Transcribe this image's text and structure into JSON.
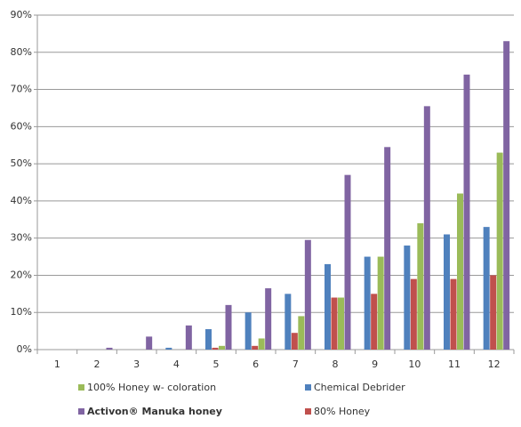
{
  "chart_data": {
    "type": "bar",
    "categories": [
      "1",
      "2",
      "3",
      "4",
      "5",
      "6",
      "7",
      "8",
      "9",
      "10",
      "11",
      "12"
    ],
    "series": [
      {
        "name": "Chemical Debrider",
        "color": "#4f81bd",
        "values": [
          0,
          0,
          0,
          0.5,
          5.5,
          10,
          15,
          23,
          25,
          28,
          31,
          33
        ]
      },
      {
        "name": "80% Honey",
        "color": "#c0504d",
        "values": [
          0,
          0,
          0,
          0,
          0.5,
          1,
          4.5,
          14,
          15,
          19,
          19,
          20
        ]
      },
      {
        "name": "100% Honey w- coloration",
        "color": "#9bbb59",
        "values": [
          0,
          0,
          0,
          0,
          1,
          3,
          9,
          14,
          25,
          34,
          42,
          53
        ]
      },
      {
        "name": "Activon® Manuka honey",
        "color": "#8064a2",
        "values": [
          0,
          0.5,
          3.5,
          6.5,
          12,
          16.5,
          29.5,
          47,
          54.5,
          65.5,
          74,
          83
        ]
      }
    ],
    "ylim": [
      0,
      90
    ],
    "yticks": [
      {
        "value": 0,
        "label": "0%"
      },
      {
        "value": 10,
        "label": "10%"
      },
      {
        "value": 20,
        "label": "20%"
      },
      {
        "value": 30,
        "label": "30%"
      },
      {
        "value": 40,
        "label": "40%"
      },
      {
        "value": 50,
        "label": "50%"
      },
      {
        "value": 60,
        "label": "60%"
      },
      {
        "value": 70,
        "label": "70%"
      },
      {
        "value": 80,
        "label": "80%"
      },
      {
        "value": 90,
        "label": "90%"
      }
    ],
    "grid": true
  }
}
